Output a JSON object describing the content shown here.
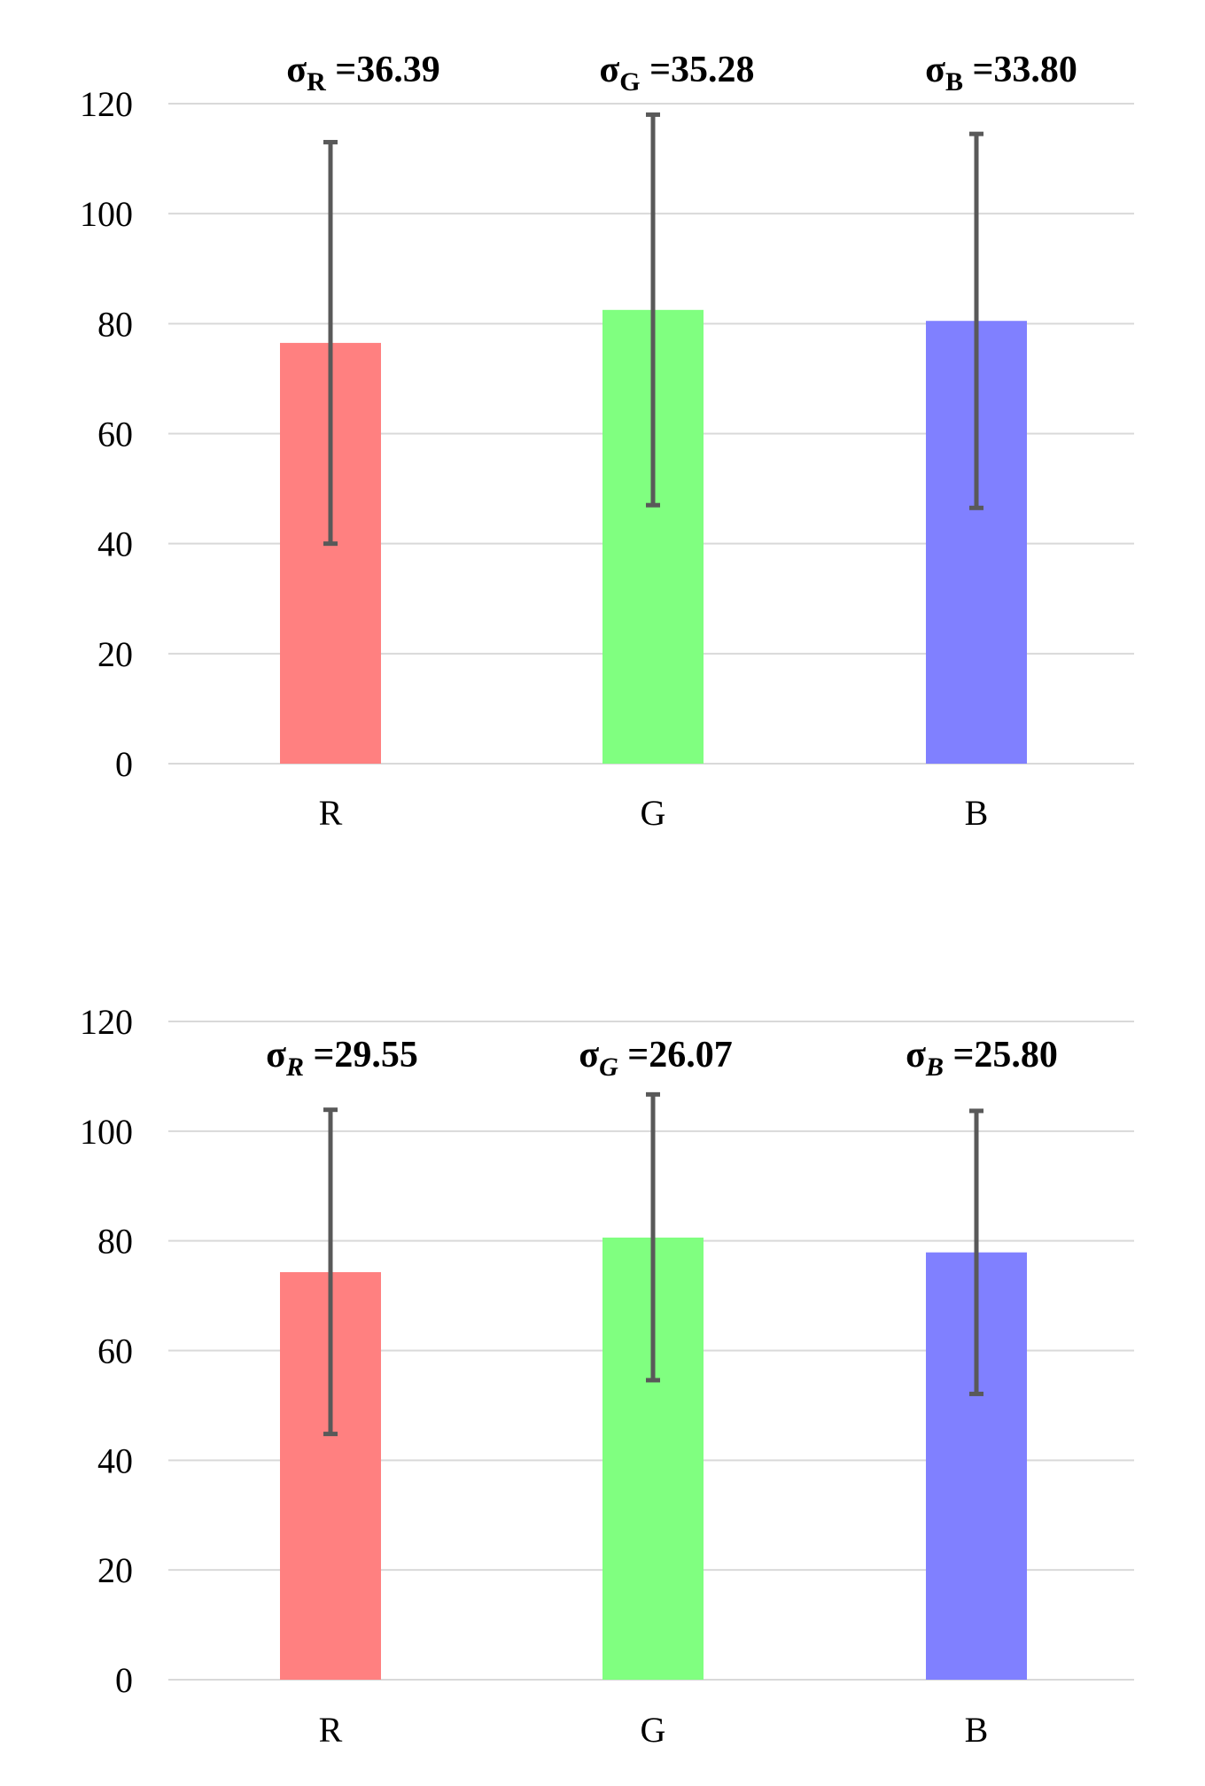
{
  "chart_data": [
    {
      "type": "bar",
      "categories": [
        "R",
        "G",
        "B"
      ],
      "values": [
        76.5,
        82.5,
        80.5
      ],
      "error_bars": [
        {
          "low": 40,
          "high": 113
        },
        {
          "low": 47,
          "high": 118
        },
        {
          "low": 46.5,
          "high": 114.5
        }
      ],
      "colors": [
        "#ff8080",
        "#80ff80",
        "#8080ff"
      ],
      "ylim": [
        0,
        120
      ],
      "yticks": [
        "0",
        "20",
        "40",
        "60",
        "80",
        "100",
        "120"
      ],
      "grid": true,
      "annotations": [
        {
          "symbol": "σ",
          "subscript": "R",
          "text": " =36.39"
        },
        {
          "symbol": "σ",
          "subscript": "G",
          "text": " =35.28"
        },
        {
          "symbol": "σ",
          "subscript": "B",
          "text": " =33.80"
        }
      ],
      "subscript_style": "upright"
    },
    {
      "type": "bar",
      "categories": [
        "R",
        "G",
        "B"
      ],
      "values": [
        74.3,
        80.6,
        77.9
      ],
      "error_bars": [
        {
          "low": 44.8,
          "high": 103.9
        },
        {
          "low": 54.6,
          "high": 106.7
        },
        {
          "low": 52.1,
          "high": 103.7
        }
      ],
      "colors": [
        "#ff8080",
        "#80ff80",
        "#8080ff"
      ],
      "ylim": [
        0,
        120
      ],
      "yticks": [
        "0",
        "20",
        "40",
        "60",
        "80",
        "100",
        "120"
      ],
      "grid": true,
      "annotations": [
        {
          "symbol": "σ",
          "subscript": "R",
          "text": " =29.55"
        },
        {
          "symbol": "σ",
          "subscript": "G",
          "text": " =26.07"
        },
        {
          "symbol": "σ",
          "subscript": "B",
          "text": " =25.80"
        }
      ],
      "subscript_style": "italic"
    }
  ]
}
